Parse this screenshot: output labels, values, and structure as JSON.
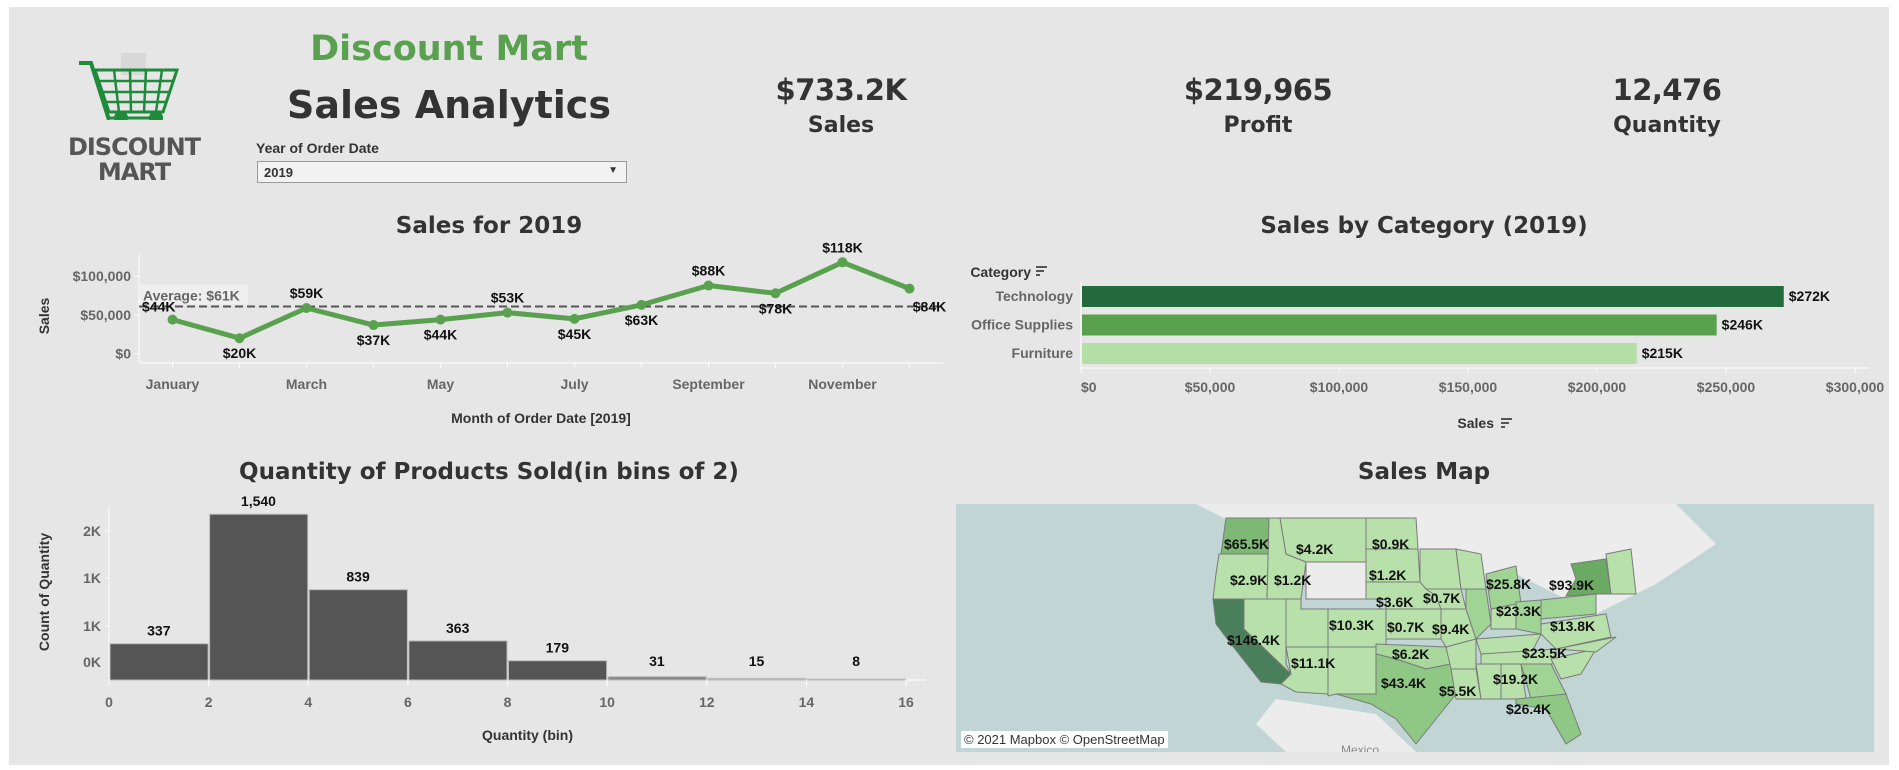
{
  "header": {
    "brand_title": "Discount Mart",
    "subtitle": "Sales Analytics",
    "logo_text_line1": "DISCOUNT",
    "logo_text_line2": "MART",
    "brand_color": "#59a14f"
  },
  "filter": {
    "label": "Year of Order Date",
    "selected": "2019"
  },
  "kpis": [
    {
      "value": "$733.2K",
      "label": "Sales"
    },
    {
      "value": "$219,965",
      "label": "Profit"
    },
    {
      "value": "12,476",
      "label": "Quantity"
    }
  ],
  "chart_data": [
    {
      "type": "line",
      "title": "Sales for 2019",
      "xlabel": "Month of Order Date [2019]",
      "ylabel": "Sales",
      "x": [
        "January",
        "February",
        "March",
        "April",
        "May",
        "June",
        "July",
        "August",
        "September",
        "October",
        "November",
        "December"
      ],
      "x_tick_labels": [
        "January",
        "March",
        "May",
        "July",
        "September",
        "November"
      ],
      "values": [
        44000,
        20000,
        59000,
        37000,
        44000,
        53000,
        45000,
        63000,
        88000,
        78000,
        118000,
        84000
      ],
      "data_labels": [
        "$44K",
        "$20K",
        "$59K",
        "$37K",
        "$44K",
        "$53K",
        "$45K",
        "$63K",
        "$88K",
        "$78K",
        "$118K",
        "$84K"
      ],
      "y_ticks": [
        0,
        50000,
        100000
      ],
      "y_tick_labels": [
        "$0",
        "$50,000",
        "$100,000"
      ],
      "ylim": [
        -12000,
        130000
      ],
      "reference_line": {
        "value": 61000,
        "label": "Average: $61K"
      },
      "color": "#59a14f"
    },
    {
      "type": "bar",
      "orientation": "horizontal",
      "title": "Sales by Category (2019)",
      "xlabel": "Sales",
      "ylabel": "Category",
      "categories": [
        "Technology",
        "Office Supplies",
        "Furniture"
      ],
      "values": [
        272000,
        246000,
        215000
      ],
      "data_labels": [
        "$272K",
        "$246K",
        "$215K"
      ],
      "colors": [
        "#236a3c",
        "#59a14f",
        "#b3dfa6"
      ],
      "x_ticks": [
        0,
        50000,
        100000,
        150000,
        200000,
        250000,
        300000
      ],
      "x_tick_labels": [
        "$0",
        "$50,000",
        "$100,000",
        "$150,000",
        "$200,000",
        "$250,000",
        "$300,000"
      ],
      "xlim": [
        0,
        300000
      ]
    },
    {
      "type": "bar",
      "subtype": "histogram",
      "title": "Quantity of Products Sold(in bins of 2)",
      "xlabel": "Quantity (bin)",
      "ylabel": "Count of Quantity",
      "bins": [
        0,
        2,
        4,
        6,
        8,
        10,
        12,
        14
      ],
      "bin_size": 2,
      "values": [
        337,
        1540,
        839,
        363,
        179,
        31,
        15,
        8
      ],
      "data_labels": [
        "337",
        "1,540",
        "839",
        "363",
        "179",
        "31",
        "15",
        "8"
      ],
      "x_tick_labels": [
        "0",
        "2",
        "4",
        "6",
        "8",
        "10",
        "12",
        "14",
        "16"
      ],
      "y_tick_labels": [
        "0K",
        "1K",
        "1K",
        "2K"
      ],
      "color": "#555555"
    }
  ],
  "map": {
    "title": "Sales Map",
    "attribution": "© 2021 Mapbox  © OpenStreetMap",
    "country_label": "Mexico",
    "state_labels": [
      {
        "state": "Washington",
        "value": "$65.5K"
      },
      {
        "state": "Montana",
        "value": "$4.2K"
      },
      {
        "state": "North Dakota",
        "value": "$0.9K"
      },
      {
        "state": "Oregon",
        "value": "$2.9K"
      },
      {
        "state": "Idaho",
        "value": "$1.2K"
      },
      {
        "state": "South Dakota",
        "value": "$1.2K"
      },
      {
        "state": "Nebraska",
        "value": "$3.6K"
      },
      {
        "state": "Iowa",
        "value": "$0.7K"
      },
      {
        "state": "Colorado",
        "value": "$10.3K"
      },
      {
        "state": "Kansas",
        "value": "$0.7K"
      },
      {
        "state": "Missouri",
        "value": "$9.4K"
      },
      {
        "state": "California",
        "value": "$146.4K"
      },
      {
        "state": "Arizona",
        "value": "$11.1K"
      },
      {
        "state": "Oklahoma",
        "value": "$6.2K"
      },
      {
        "state": "Texas",
        "value": "$43.4K"
      },
      {
        "state": "Louisiana",
        "value": "$5.5K"
      },
      {
        "state": "Michigan",
        "value": "$25.8K"
      },
      {
        "state": "Ohio",
        "value": "$23.3K"
      },
      {
        "state": "New York",
        "value": "$93.9K"
      },
      {
        "state": "Virginia",
        "value": "$13.8K"
      },
      {
        "state": "North Carolina",
        "value": "$23.5K"
      },
      {
        "state": "Georgia",
        "value": "$19.2K"
      },
      {
        "state": "Florida",
        "value": "$26.4K"
      }
    ]
  }
}
